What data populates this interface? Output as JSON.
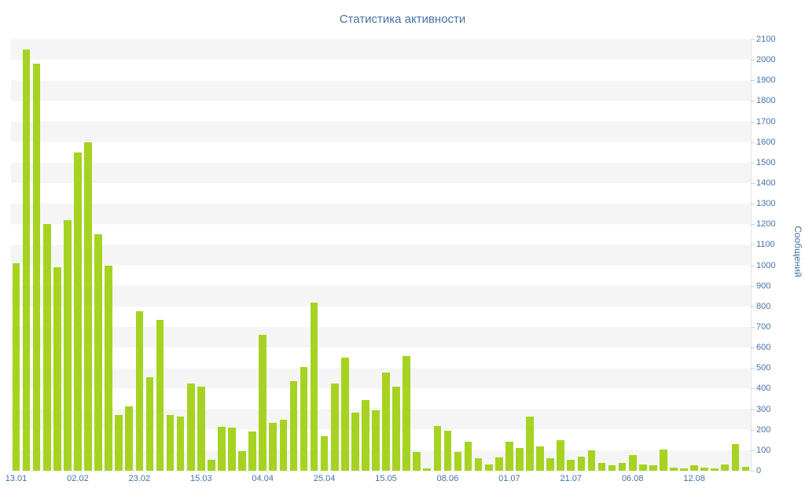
{
  "title": "Статистика активности",
  "colors": {
    "bar": "#a6d322",
    "text": "#4572a7",
    "band": "#f5f5f5",
    "axis_line": "#dde6ee"
  },
  "chart_data": {
    "type": "bar",
    "title": "Статистика активности",
    "xlabel": "",
    "ylabel": "Сообщений",
    "ylim": [
      0,
      2100
    ],
    "y_tick_step": 100,
    "grid": "horizontal-bands",
    "legend": "none",
    "x_tick_labels": [
      "13.01",
      "02.02",
      "23.02",
      "15.03",
      "04.04",
      "25.04",
      "15.05",
      "08.06",
      "01.07",
      "21.07",
      "06.08",
      "12.08"
    ],
    "x_tick_every": 6,
    "values": [
      1010,
      2050,
      1980,
      1200,
      990,
      1220,
      1550,
      1600,
      1150,
      1000,
      270,
      315,
      775,
      455,
      735,
      270,
      265,
      425,
      410,
      55,
      215,
      210,
      95,
      190,
      660,
      235,
      250,
      435,
      505,
      820,
      170,
      425,
      550,
      285,
      345,
      295,
      480,
      410,
      560,
      90,
      10,
      220,
      195,
      90,
      140,
      60,
      30,
      65,
      140,
      110,
      265,
      120,
      60,
      150,
      55,
      70,
      100,
      40,
      25,
      40,
      75,
      30,
      25,
      105,
      15,
      10,
      25,
      15,
      10,
      30,
      130,
      20
    ]
  }
}
